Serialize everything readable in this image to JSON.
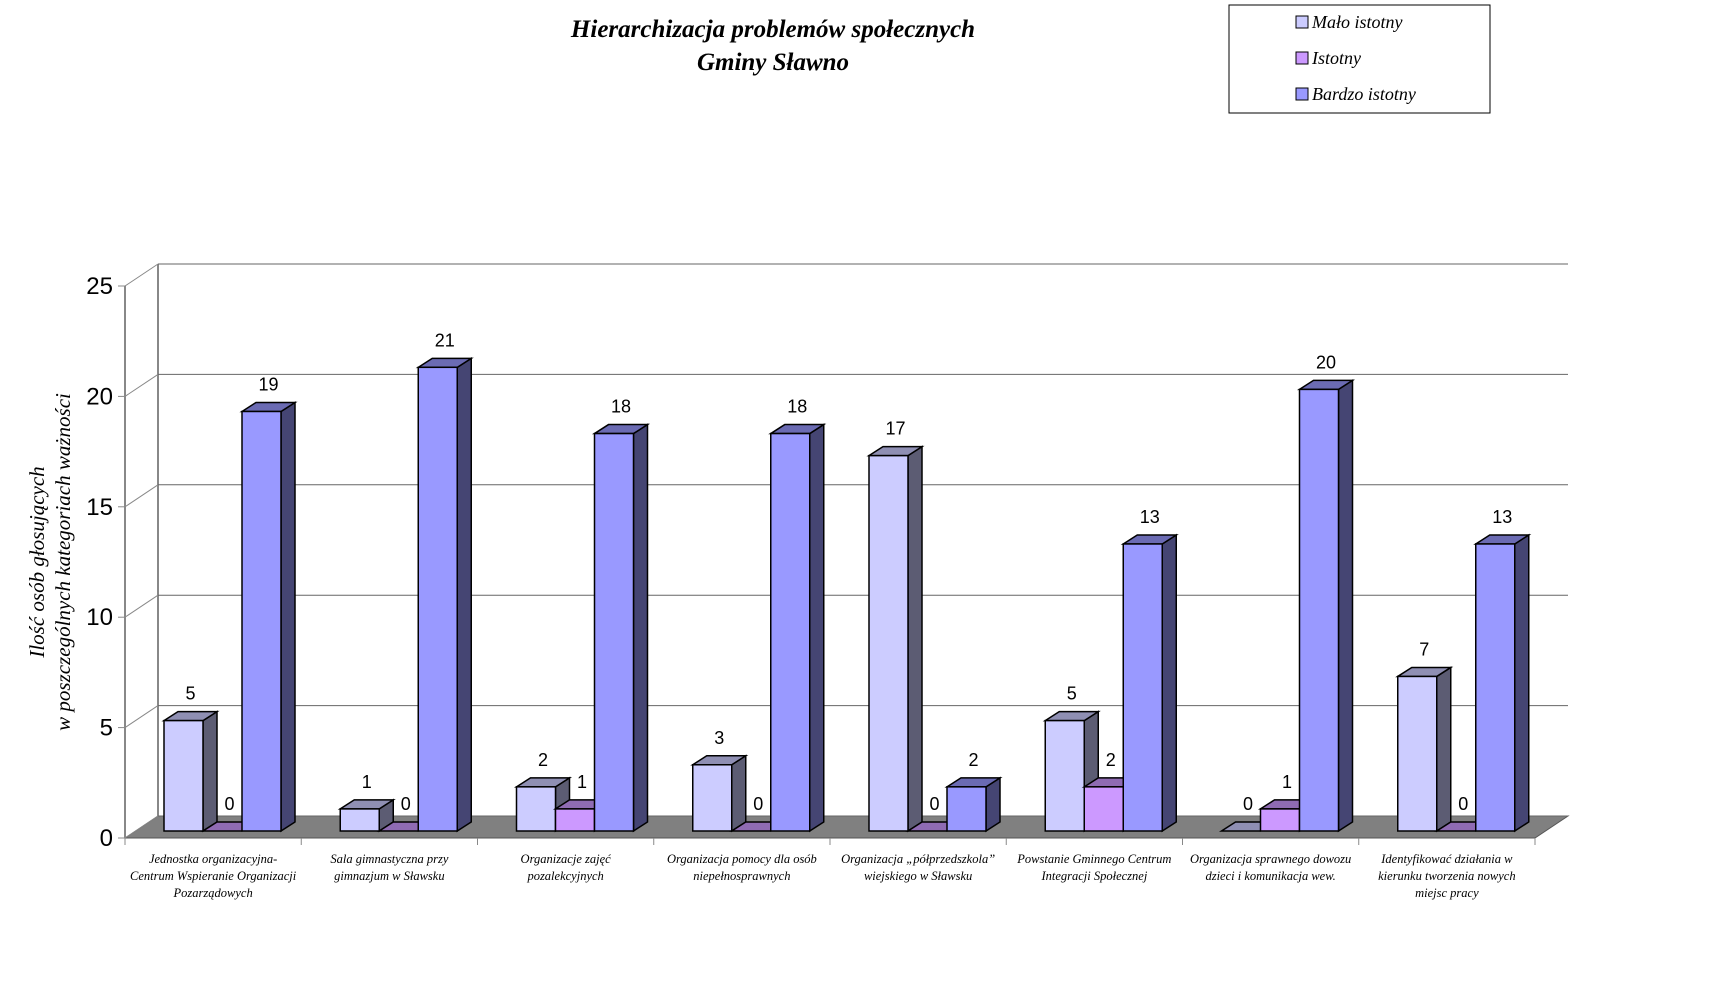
{
  "chart_data": {
    "type": "bar3d",
    "title": [
      "Hierarchizacja problemów społecznych",
      "Gminy Sławno"
    ],
    "y_label": [
      "Ilość osób głosujących",
      "w poszczególnych kategoriach ważności"
    ],
    "categories": [
      "Jednostka organizacyjna- Centrum Wspieranie Organizacji Pozarządowych",
      "Sala gimnastyczna przy gimnazjum w Sławsku",
      "Organizacje zajęć pozalekcyjnych",
      "Organizacja pomocy dla osób niepełnosprawnych",
      "Organizacja „półprzedszkola” wiejskiego w Sławsku",
      "Powstanie Gminnego Centrum Integracji Społecznej",
      "Organizacja sprawnego dowozu dzieci i komunikacja wew.",
      "Identyfikować działania w kierunku tworzenia nowych miejsc pracy"
    ],
    "series": [
      {
        "name": "Mało istotny",
        "color": "#ccccff",
        "values": [
          5,
          1,
          2,
          3,
          17,
          5,
          0,
          7
        ]
      },
      {
        "name": "Istotny",
        "color": "#cc99ff",
        "values": [
          0,
          0,
          1,
          0,
          0,
          2,
          1,
          0
        ]
      },
      {
        "name": "Bardzo istotny",
        "color": "#9999ff",
        "values": [
          19,
          21,
          18,
          18,
          2,
          13,
          20,
          13
        ]
      }
    ],
    "ylim": [
      0,
      25
    ],
    "yticks": [
      0,
      5,
      10,
      15,
      20,
      25
    ],
    "grid": true,
    "legend": "top-right"
  }
}
